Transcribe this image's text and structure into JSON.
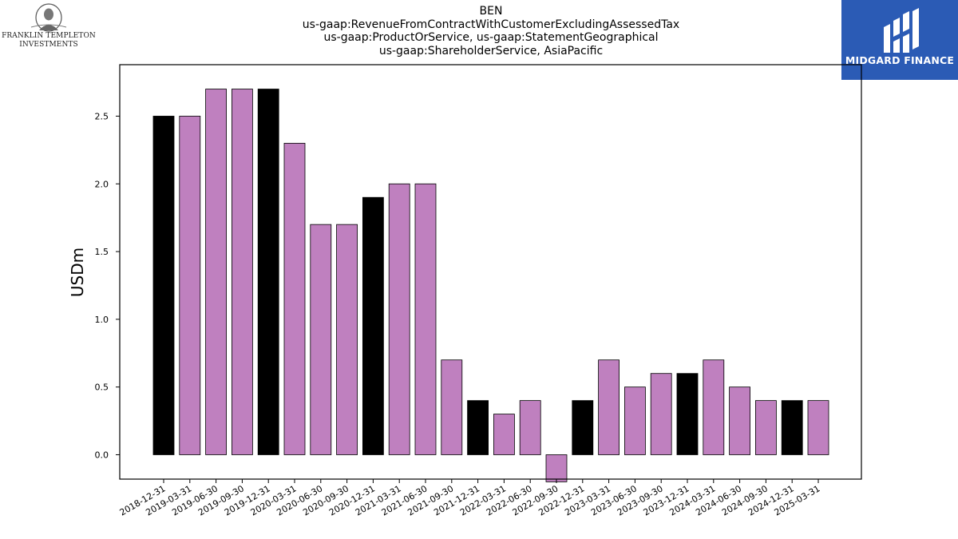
{
  "header": {
    "title_lines": [
      "BEN",
      "us-gaap:RevenueFromContractWithCustomerExcludingAssessedTax",
      "us-gaap:ProductOrService, us-gaap:StatementGeographical",
      "us-gaap:ShareholderService, AsiaPacific"
    ]
  },
  "logos": {
    "left_line1": "FRANKLIN TEMPLETON",
    "left_line2": "INVESTMENTS",
    "right_text": "MIDGARD FINANCE"
  },
  "colors": {
    "bar_default": "#bf80bf",
    "bar_highlight": "#000000",
    "logo_right_bg": "#2b5bb5"
  },
  "chart_data": {
    "type": "bar",
    "title": "BEN us-gaap:RevenueFromContractWithCustomerExcludingAssessedTax us-gaap:ProductOrService, us-gaap:StatementGeographical us-gaap:ShareholderService, AsiaPacific",
    "xlabel": "",
    "ylabel": "USDm",
    "ylim": [
      -0.18,
      2.88
    ],
    "yticks": [
      0.0,
      0.5,
      1.0,
      1.5,
      2.0,
      2.5
    ],
    "ytick_labels": [
      "0.0",
      "0.5",
      "1.0",
      "1.5",
      "2.0",
      "2.5"
    ],
    "categories": [
      "2018-12-31",
      "2019-03-31",
      "2019-06-30",
      "2019-09-30",
      "2019-12-31",
      "2020-03-31",
      "2020-06-30",
      "2020-09-30",
      "2020-12-31",
      "2021-03-31",
      "2021-06-30",
      "2021-09-30",
      "2021-12-31",
      "2022-03-31",
      "2022-06-30",
      "2022-09-30",
      "2022-12-31",
      "2023-03-31",
      "2023-06-30",
      "2023-09-30",
      "2023-12-31",
      "2024-03-31",
      "2024-06-30",
      "2024-09-30",
      "2024-12-31",
      "2025-03-31"
    ],
    "values": [
      2.5,
      2.5,
      2.7,
      2.7,
      2.7,
      2.3,
      1.7,
      1.7,
      1.9,
      2.0,
      2.0,
      0.7,
      0.4,
      0.3,
      0.4,
      -0.2,
      0.4,
      0.7,
      0.5,
      0.6,
      0.6,
      0.7,
      0.5,
      0.4,
      0.4,
      0.4
    ],
    "highlight": [
      true,
      false,
      false,
      false,
      true,
      false,
      false,
      false,
      true,
      false,
      false,
      false,
      true,
      false,
      false,
      false,
      true,
      false,
      false,
      false,
      true,
      false,
      false,
      false,
      true,
      false
    ],
    "grid": false,
    "legend": "none"
  }
}
